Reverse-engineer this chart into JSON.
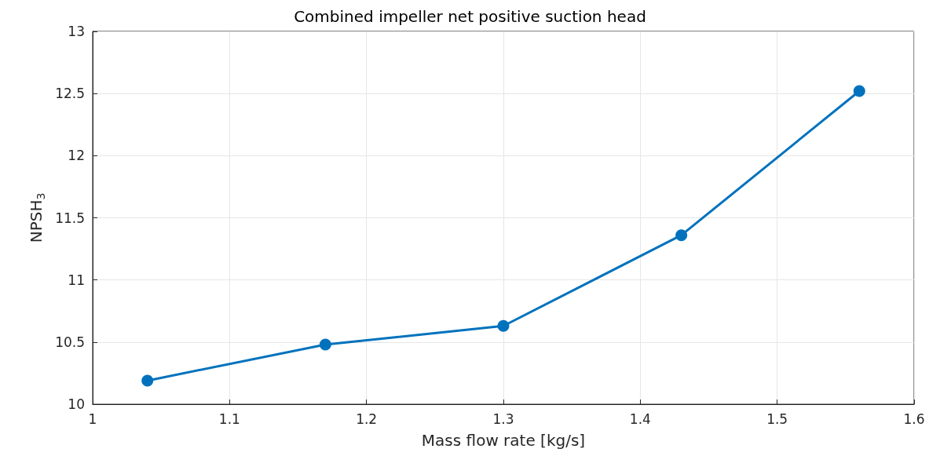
{
  "chart_data": {
    "type": "line",
    "title": "Combined impeller net positive suction head",
    "xlabel": "Mass flow rate [kg/s]",
    "ylabel": "NPSH$_{3}$",
    "x": [
      1.04,
      1.17,
      1.3,
      1.43,
      1.56
    ],
    "series": [
      {
        "color": "#0072bd",
        "values": [
          10.19,
          10.48,
          10.63,
          11.36,
          12.52
        ]
      }
    ],
    "xlim": [
      1,
      1.6
    ],
    "xticks": [
      1,
      1.1,
      1.2,
      1.3,
      1.4,
      1.5,
      1.6
    ],
    "ylim": [
      10,
      13
    ],
    "yticks": [
      10,
      10.5,
      11,
      11.5,
      12,
      12.5,
      13
    ],
    "grid": true,
    "marker": "circle",
    "line_style": "solid"
  }
}
